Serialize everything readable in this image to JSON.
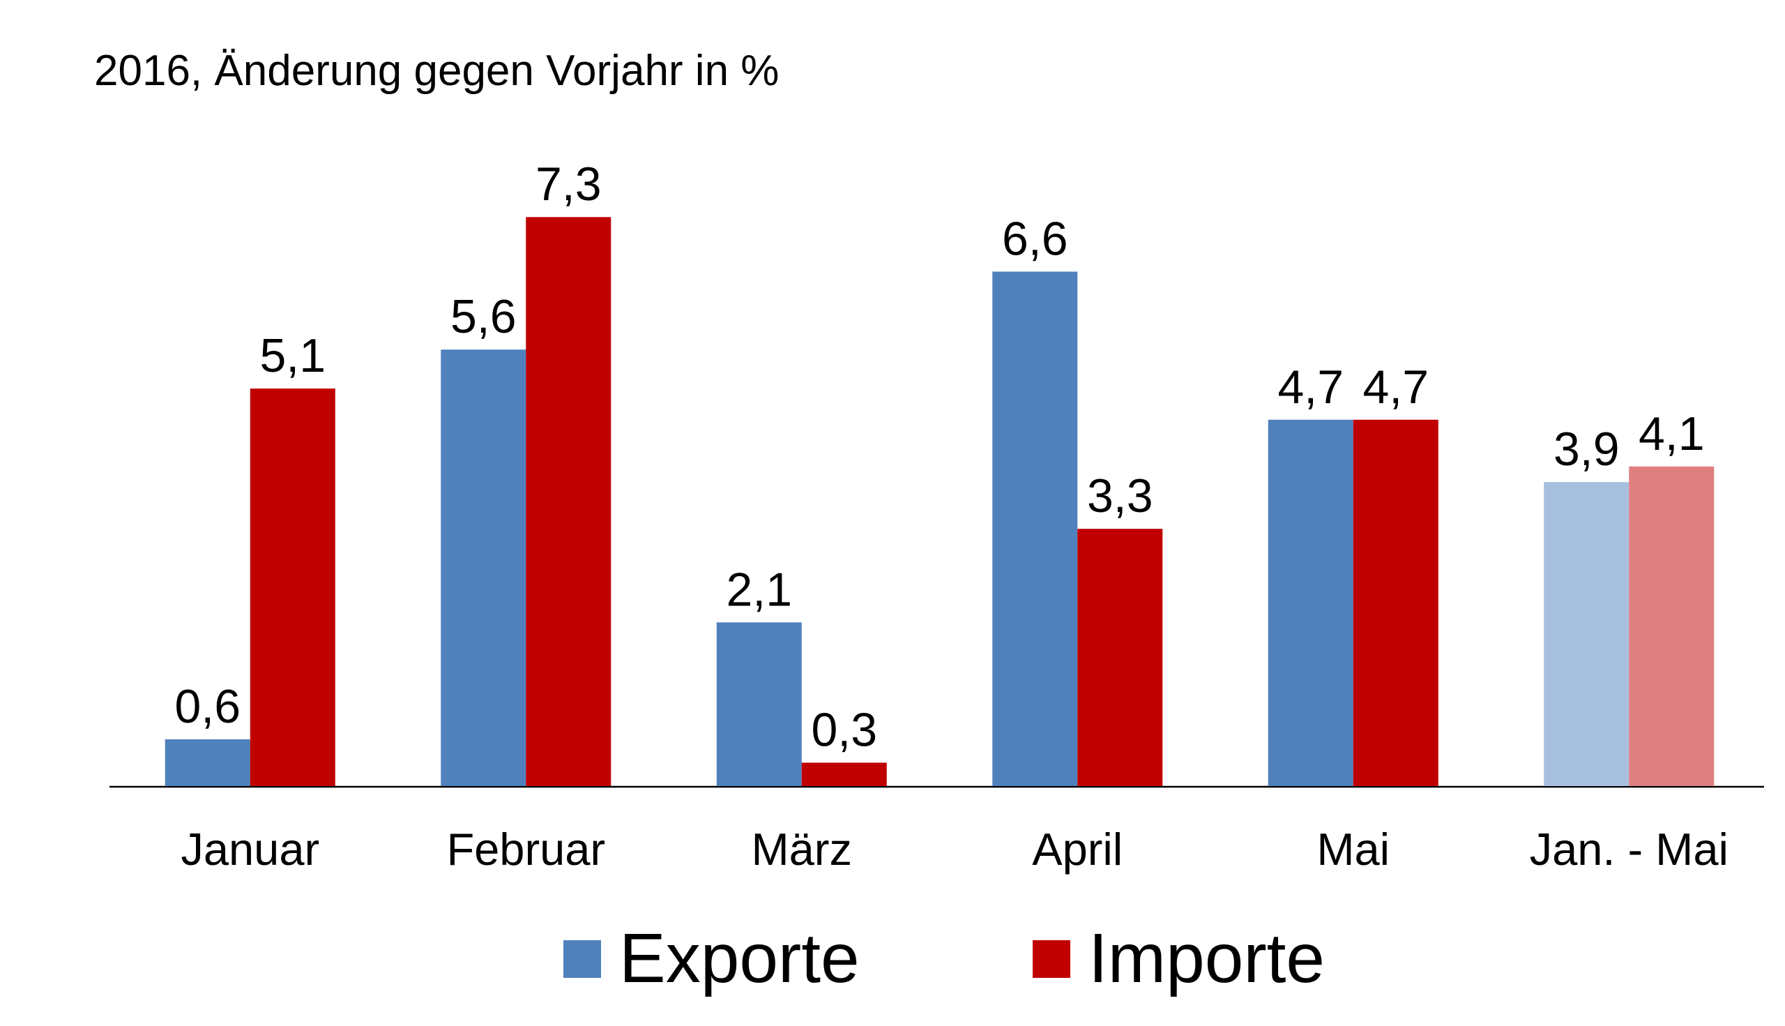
{
  "chart_data": {
    "type": "bar",
    "title": "2016, Änderung gegen Vorjahr in %",
    "categories": [
      "Januar",
      "Februar",
      "März",
      "April",
      "Mai",
      "Jan. - Mai"
    ],
    "series": [
      {
        "name": "Exporte",
        "color": "#4f81bd",
        "colors": [
          "#4f81bd",
          "#4f81bd",
          "#4f81bd",
          "#4f81bd",
          "#4f81bd",
          "#a7c0de"
        ],
        "values": [
          0.6,
          5.6,
          2.1,
          6.6,
          4.7,
          3.9
        ],
        "value_labels": [
          "0,6",
          "5,6",
          "2,1",
          "6,6",
          "4,7",
          "3,9"
        ]
      },
      {
        "name": "Importe",
        "color": "#c00000",
        "colors": [
          "#c00000",
          "#c00000",
          "#c00000",
          "#c00000",
          "#c00000",
          "#df7f7f"
        ],
        "values": [
          5.1,
          7.3,
          0.3,
          3.3,
          4.7,
          4.1
        ],
        "value_labels": [
          "5,1",
          "7,3",
          "0,3",
          "3,3",
          "4,7",
          "4,1"
        ]
      }
    ],
    "ylim": [
      0,
      8
    ],
    "legend": "bottom"
  }
}
